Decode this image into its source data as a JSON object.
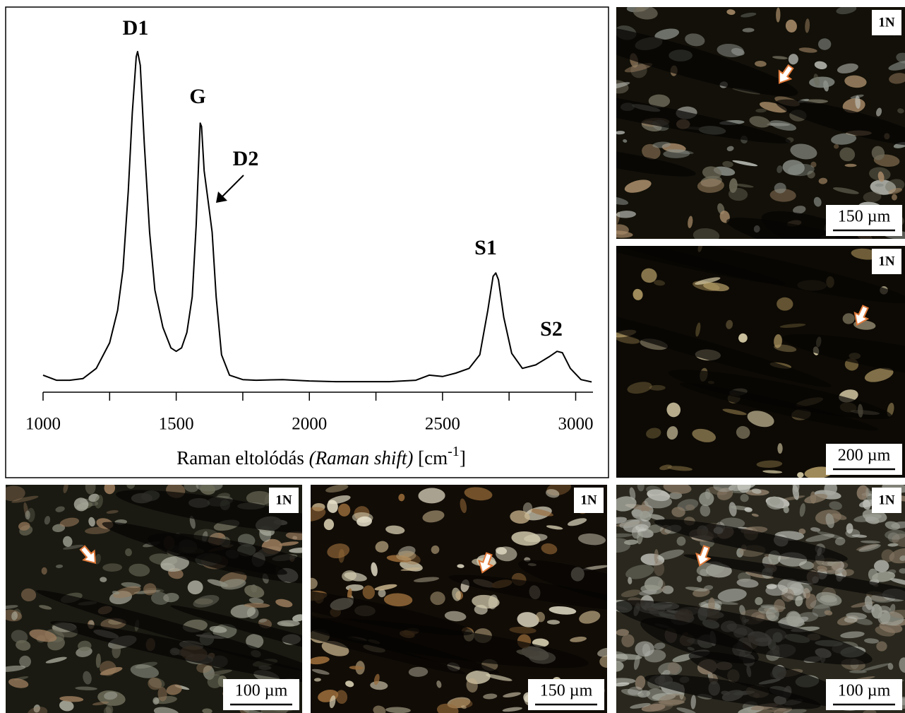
{
  "chart_data": {
    "type": "line",
    "x": [
      1000,
      1050,
      1100,
      1150,
      1200,
      1250,
      1280,
      1300,
      1320,
      1335,
      1350,
      1355,
      1365,
      1380,
      1400,
      1420,
      1450,
      1480,
      1500,
      1520,
      1540,
      1560,
      1575,
      1585,
      1590,
      1595,
      1605,
      1620,
      1635,
      1650,
      1670,
      1700,
      1750,
      1800,
      1900,
      2000,
      2100,
      2200,
      2300,
      2400,
      2450,
      2500,
      2550,
      2600,
      2640,
      2670,
      2690,
      2700,
      2710,
      2730,
      2760,
      2800,
      2850,
      2900,
      2930,
      2950,
      2980,
      3020,
      3060
    ],
    "y": [
      5,
      3.5,
      3.5,
      4,
      7,
      14.5,
      24,
      36,
      59,
      82,
      98.5,
      100,
      96,
      73,
      47,
      30,
      19,
      13,
      12,
      13,
      17.5,
      28,
      49,
      69,
      79,
      78,
      65,
      56,
      47,
      28,
      11,
      5,
      3.7,
      3.5,
      3.7,
      3.3,
      3.1,
      3.1,
      3.1,
      3.5,
      5,
      4.6,
      5.6,
      7,
      11,
      24,
      34,
      35,
      33,
      22,
      11.4,
      7,
      8,
      10.4,
      12,
      11.6,
      7,
      3.7,
      3
    ],
    "color": "#000000",
    "xlim": [
      1000,
      3065
    ],
    "ylim": [
      0,
      100
    ],
    "xticks": [
      1000,
      1500,
      2000,
      2500,
      3000
    ],
    "xminorticks": [
      1250,
      1750,
      2250,
      2750
    ],
    "xlabel": [
      "Raman eltolódás ",
      "(Raman shift)",
      " [cm",
      "-1",
      "]"
    ],
    "annotations": [
      "D1",
      "G",
      "D2",
      "S1",
      "S2"
    ]
  },
  "panels": [
    {
      "badge": "1N",
      "scale": "150 µm"
    },
    {
      "badge": "1N",
      "scale": "200 µm"
    },
    {
      "badge": "1N",
      "scale": "100 µm"
    },
    {
      "badge": "1N",
      "scale": "150 µm"
    },
    {
      "badge": "1N",
      "scale": "100 µm"
    }
  ]
}
